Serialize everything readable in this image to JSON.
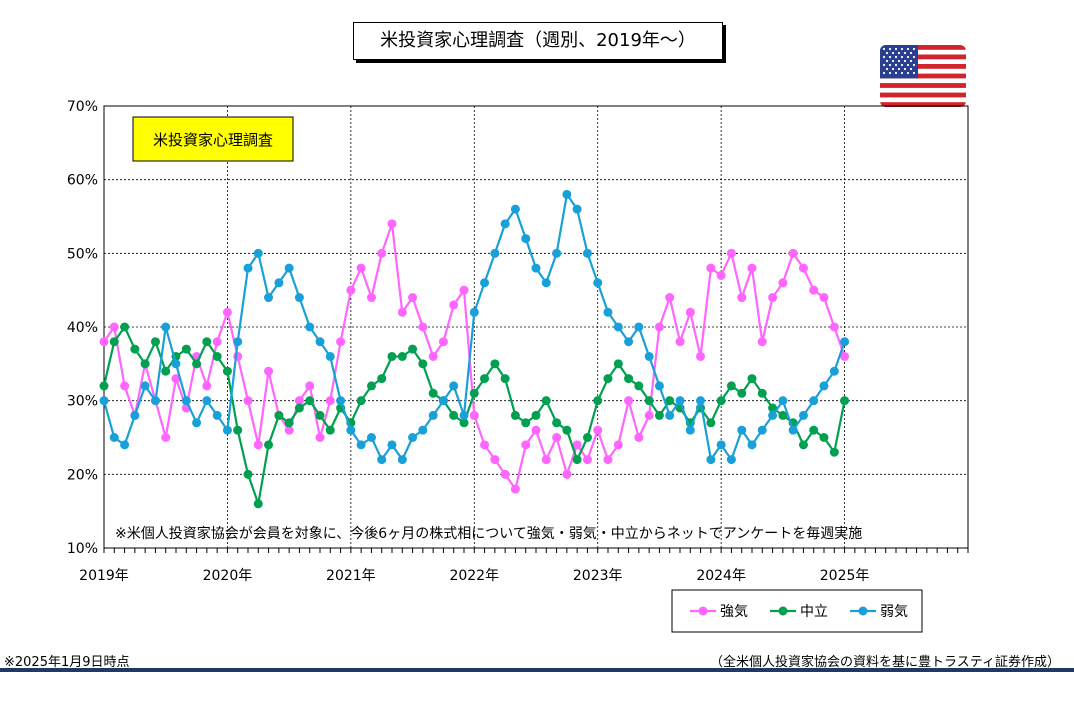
{
  "title": "米投資家心理調査（週別、2019年～）",
  "note_box": "米投資家心理調査",
  "footnote": "※米個人投資家協会が会員を対象に、今後6ヶ月の株式相について強気・弱気・中立からネットでアンケートを毎週実施",
  "as_of": "※2025年1月9日時点",
  "source": "（全米個人投資家協会の資料を基に豊トラスティ証券作成）",
  "flag_icon": "us-flag-icon",
  "chart_data": {
    "type": "line",
    "title": "米投資家心理調査（週別、2019年～）",
    "xlabel": "",
    "ylabel": "",
    "x_ticks": [
      "2019年",
      "2020年",
      "2021年",
      "2022年",
      "2023年",
      "2024年",
      "2025年"
    ],
    "y_ticks": [
      "10%",
      "20%",
      "30%",
      "40%",
      "50%",
      "60%",
      "70%"
    ],
    "ylim": [
      10,
      70
    ],
    "xlim": [
      2019.0,
      2026.0
    ],
    "grid": "horizontal dashed",
    "legend": "bottom-right",
    "series": [
      {
        "name": "強気",
        "color": "#ff66ff",
        "x": [
          2019.0,
          2019.083,
          2019.167,
          2019.25,
          2019.333,
          2019.417,
          2019.5,
          2019.583,
          2019.667,
          2019.75,
          2019.833,
          2019.917,
          2020.0,
          2020.083,
          2020.167,
          2020.25,
          2020.333,
          2020.417,
          2020.5,
          2020.583,
          2020.667,
          2020.75,
          2020.833,
          2020.917,
          2021.0,
          2021.083,
          2021.167,
          2021.25,
          2021.333,
          2021.417,
          2021.5,
          2021.583,
          2021.667,
          2021.75,
          2021.833,
          2021.917,
          2022.0,
          2022.083,
          2022.167,
          2022.25,
          2022.333,
          2022.417,
          2022.5,
          2022.583,
          2022.667,
          2022.75,
          2022.833,
          2022.917,
          2023.0,
          2023.083,
          2023.167,
          2023.25,
          2023.333,
          2023.417,
          2023.5,
          2023.583,
          2023.667,
          2023.75,
          2023.833,
          2023.917,
          2024.0,
          2024.083,
          2024.167,
          2024.25,
          2024.333,
          2024.417,
          2024.5,
          2024.583,
          2024.667,
          2024.75,
          2024.833,
          2024.917,
          2025.0
        ],
        "values": [
          38,
          40,
          32,
          28,
          35,
          30,
          25,
          33,
          29,
          36,
          32,
          38,
          42,
          36,
          30,
          24,
          34,
          28,
          26,
          30,
          32,
          25,
          30,
          38,
          45,
          48,
          44,
          50,
          54,
          42,
          44,
          40,
          36,
          38,
          43,
          45,
          28,
          24,
          22,
          20,
          18,
          24,
          26,
          22,
          25,
          20,
          24,
          22,
          26,
          22,
          24,
          30,
          25,
          28,
          40,
          44,
          38,
          42,
          36,
          48,
          47,
          50,
          44,
          48,
          38,
          44,
          46,
          50,
          48,
          45,
          44,
          40,
          36
        ]
      },
      {
        "name": "中立",
        "color": "#00a050",
        "x": [
          2019.0,
          2019.083,
          2019.167,
          2019.25,
          2019.333,
          2019.417,
          2019.5,
          2019.583,
          2019.667,
          2019.75,
          2019.833,
          2019.917,
          2020.0,
          2020.083,
          2020.167,
          2020.25,
          2020.333,
          2020.417,
          2020.5,
          2020.583,
          2020.667,
          2020.75,
          2020.833,
          2020.917,
          2021.0,
          2021.083,
          2021.167,
          2021.25,
          2021.333,
          2021.417,
          2021.5,
          2021.583,
          2021.667,
          2021.75,
          2021.833,
          2021.917,
          2022.0,
          2022.083,
          2022.167,
          2022.25,
          2022.333,
          2022.417,
          2022.5,
          2022.583,
          2022.667,
          2022.75,
          2022.833,
          2022.917,
          2023.0,
          2023.083,
          2023.167,
          2023.25,
          2023.333,
          2023.417,
          2023.5,
          2023.583,
          2023.667,
          2023.75,
          2023.833,
          2023.917,
          2024.0,
          2024.083,
          2024.167,
          2024.25,
          2024.333,
          2024.417,
          2024.5,
          2024.583,
          2024.667,
          2024.75,
          2024.833,
          2024.917,
          2025.0
        ],
        "values": [
          32,
          38,
          40,
          37,
          35,
          38,
          34,
          36,
          37,
          35,
          38,
          36,
          34,
          26,
          20,
          16,
          24,
          28,
          27,
          29,
          30,
          28,
          26,
          29,
          27,
          30,
          32,
          33,
          36,
          36,
          37,
          35,
          31,
          30,
          28,
          27,
          31,
          33,
          35,
          33,
          28,
          27,
          28,
          30,
          27,
          26,
          22,
          25,
          30,
          33,
          35,
          33,
          32,
          30,
          28,
          30,
          29,
          27,
          29,
          27,
          30,
          32,
          31,
          33,
          31,
          29,
          28,
          27,
          24,
          26,
          25,
          23,
          30
        ]
      },
      {
        "name": "弱気",
        "color": "#1aa0d8",
        "x": [
          2019.0,
          2019.083,
          2019.167,
          2019.25,
          2019.333,
          2019.417,
          2019.5,
          2019.583,
          2019.667,
          2019.75,
          2019.833,
          2019.917,
          2020.0,
          2020.083,
          2020.167,
          2020.25,
          2020.333,
          2020.417,
          2020.5,
          2020.583,
          2020.667,
          2020.75,
          2020.833,
          2020.917,
          2021.0,
          2021.083,
          2021.167,
          2021.25,
          2021.333,
          2021.417,
          2021.5,
          2021.583,
          2021.667,
          2021.75,
          2021.833,
          2021.917,
          2022.0,
          2022.083,
          2022.167,
          2022.25,
          2022.333,
          2022.417,
          2022.5,
          2022.583,
          2022.667,
          2022.75,
          2022.833,
          2022.917,
          2023.0,
          2023.083,
          2023.167,
          2023.25,
          2023.333,
          2023.417,
          2023.5,
          2023.583,
          2023.667,
          2023.75,
          2023.833,
          2023.917,
          2024.0,
          2024.083,
          2024.167,
          2024.25,
          2024.333,
          2024.417,
          2024.5,
          2024.583,
          2024.667,
          2024.75,
          2024.833,
          2024.917,
          2025.0
        ],
        "values": [
          30,
          25,
          24,
          28,
          32,
          30,
          40,
          35,
          30,
          27,
          30,
          28,
          26,
          38,
          48,
          50,
          44,
          46,
          48,
          44,
          40,
          38,
          36,
          30,
          26,
          24,
          25,
          22,
          24,
          22,
          25,
          26,
          28,
          30,
          32,
          28,
          42,
          46,
          50,
          54,
          56,
          52,
          48,
          46,
          50,
          58,
          56,
          50,
          46,
          42,
          40,
          38,
          40,
          36,
          32,
          28,
          30,
          26,
          30,
          22,
          24,
          22,
          26,
          24,
          26,
          28,
          30,
          26,
          28,
          30,
          32,
          34,
          38
        ]
      }
    ]
  },
  "legend_labels": [
    "強気",
    "中立",
    "弱気"
  ]
}
